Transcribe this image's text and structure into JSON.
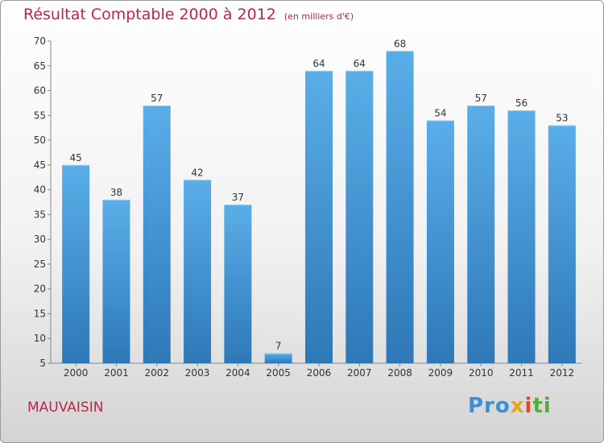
{
  "chart_data": {
    "type": "bar",
    "title": "Résultat Comptable 2000 à 2012",
    "subtitle": "(en milliers d'€)",
    "categories": [
      "2000",
      "2001",
      "2002",
      "2003",
      "2004",
      "2005",
      "2006",
      "2007",
      "2008",
      "2009",
      "2010",
      "2011",
      "2012"
    ],
    "values": [
      45,
      38,
      57,
      42,
      37,
      7,
      64,
      64,
      68,
      54,
      57,
      56,
      53
    ],
    "ylim": [
      5,
      70
    ],
    "yticks": [
      5,
      10,
      15,
      20,
      25,
      30,
      35,
      40,
      45,
      50,
      55,
      60,
      65,
      70
    ],
    "grid": false,
    "bar_color_top": "#5aaee8",
    "bar_color_bottom": "#2e78b8"
  },
  "footer": {
    "town": "MAUVAISIN",
    "brand": "Proxiti",
    "brand_parts": [
      "Pro",
      "x",
      "i",
      "ti"
    ],
    "title_color": "#b8284a"
  }
}
